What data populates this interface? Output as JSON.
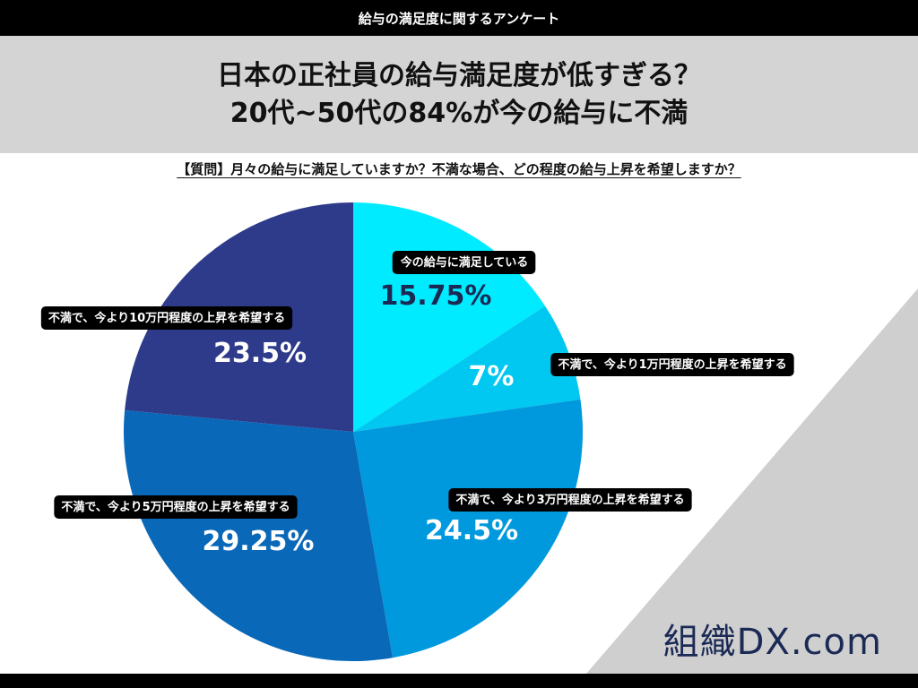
{
  "header": {
    "topbar": "給与の満足度に関するアンケート"
  },
  "title": {
    "line1": "日本の正社員の給与満足度が低すぎる？",
    "line2": "20代~50代の84%が今の給与に不満"
  },
  "question": "【質問】月々の給与に満足していますか？不満な場合、どの程度の給与上昇を希望しますか？",
  "logo": "組織DX.com",
  "chart_data": {
    "type": "pie",
    "slices": [
      {
        "label": "今の給与に満足している",
        "value": 15.75,
        "display": "15.75%",
        "color": "#00ebff"
      },
      {
        "label": "不満で、今より1万円程度の上昇を希望する",
        "value": 7,
        "display": "7%",
        "color": "#00c8f0"
      },
      {
        "label": "不満で、今より3万円程度の上昇を希望する",
        "value": 24.5,
        "display": "24.5%",
        "color": "#0099dd"
      },
      {
        "label": "不満で、今より5万円程度の上昇を希望する",
        "value": 29.25,
        "display": "29.25%",
        "color": "#0a68b8"
      },
      {
        "label": "不満で、今より10万円程度の上昇を希望する",
        "value": 23.5,
        "display": "23.5%",
        "color": "#2e3a8a"
      }
    ]
  }
}
